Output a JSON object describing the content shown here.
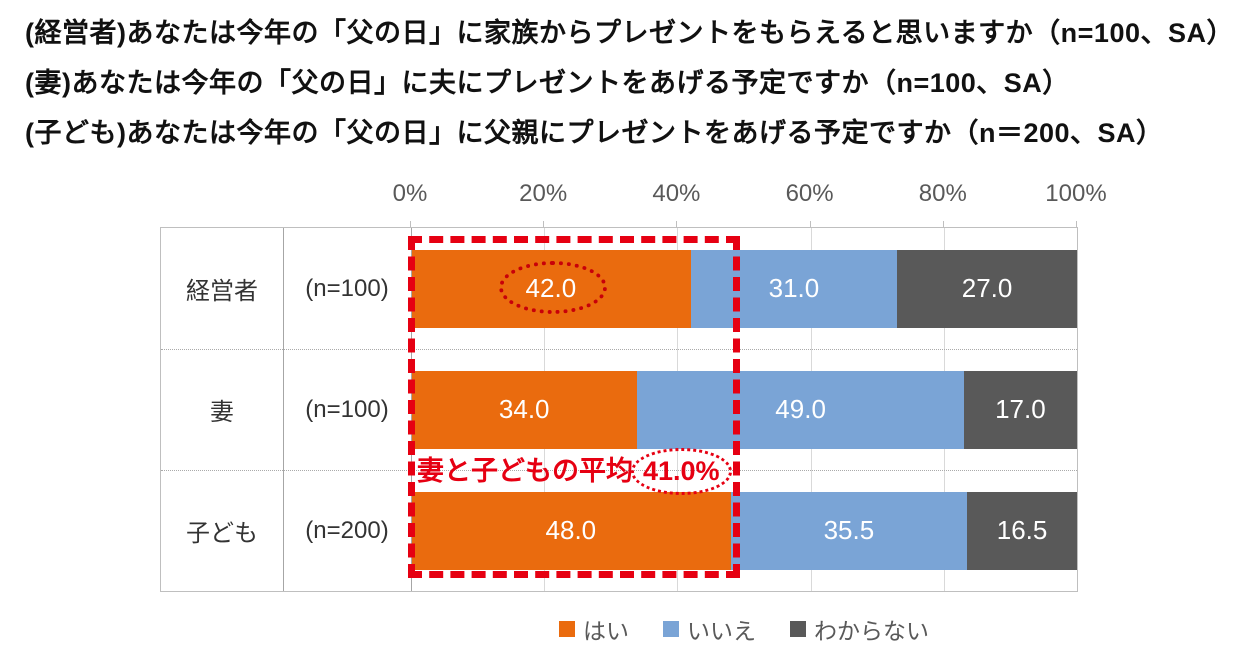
{
  "header": {
    "title_lines": [
      "(経営者)あなたは今年の「父の日」に家族からプレゼントをもらえると思いますか（n=100、SA）",
      "(妻)あなたは今年の「父の日」に夫にプレゼントをあげる予定ですか（n=100、SA）",
      "(子ども)あなたは今年の「父の日」に父親にプレゼントをあげる予定ですか（n＝200、SA）"
    ]
  },
  "chart_data": {
    "type": "bar",
    "orientation": "horizontal",
    "stacked": true,
    "categories": [
      "経営者",
      "妻",
      "子ども"
    ],
    "sample_sizes": [
      "(n=100)",
      "(n=100)",
      "(n=200)"
    ],
    "series": [
      {
        "key": "yes",
        "name": "はい",
        "color": "#EA6B0E",
        "values": [
          42.0,
          34.0,
          48.0
        ]
      },
      {
        "key": "no",
        "name": "いいえ",
        "color": "#7AA4D6",
        "values": [
          31.0,
          49.0,
          35.5
        ]
      },
      {
        "key": "dontknow",
        "name": "わからない",
        "color": "#595959",
        "values": [
          27.0,
          17.0,
          16.5
        ]
      }
    ],
    "xlim": [
      0,
      100
    ],
    "x_ticks": [
      "0%",
      "20%",
      "40%",
      "60%",
      "80%",
      "100%"
    ],
    "grid": true,
    "legend_position": "bottom",
    "value_format": "one_decimal",
    "annotations": [
      {
        "type": "dashed-box",
        "color": "#E60012",
        "note": "red dashed box framing the はい segments of all rows (0% to ~49%)"
      },
      {
        "type": "dotted-ellipse",
        "color": "#C00000",
        "target_value": "42.0",
        "note": "dotted ellipse around 経営者 はい value"
      },
      {
        "type": "text-callout",
        "text": "妻と子どもの平均41.0%",
        "highlighted_part": "41.0%",
        "color": "#E60012"
      }
    ]
  },
  "annotation": {
    "prefix": "妻と子どもの平均",
    "value": "41.0%"
  },
  "colors": {
    "red": "#E60012",
    "red_dark": "#C80009",
    "border_gray": "#BFBFBF",
    "separator_gray": "#A6A6A6",
    "grid_gray": "#D9D9D9",
    "gray_text": "#595959"
  }
}
